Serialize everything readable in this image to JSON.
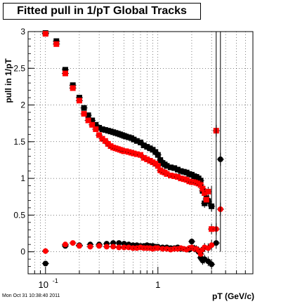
{
  "chart_data": {
    "type": "scatter",
    "title": "Fitted pull in 1/pT  Global Tracks",
    "xlabel": "pT (GeV/c)",
    "ylabel": "pull in 1/pT",
    "x_scale": "log",
    "xlim": [
      0.07,
      7.0
    ],
    "ylim": [
      -0.3,
      3.0
    ],
    "x_ticks": [
      0.1,
      1
    ],
    "x_tick_labels": [
      "10^-1",
      "1"
    ],
    "y_ticks": [
      0,
      0.5,
      1,
      1.5,
      2,
      2.5,
      3
    ],
    "y_tick_labels": [
      "0",
      "0.5",
      "1",
      "1.5",
      "2",
      "2.5",
      "3"
    ],
    "grid": true,
    "series": [
      {
        "marker": "square",
        "color": "#000000",
        "x": [
          0.1,
          0.125,
          0.15,
          0.175,
          0.2,
          0.22,
          0.24,
          0.26,
          0.28,
          0.3,
          0.32,
          0.34,
          0.36,
          0.38,
          0.4,
          0.42,
          0.44,
          0.46,
          0.48,
          0.5,
          0.52,
          0.55,
          0.58,
          0.61,
          0.65,
          0.7,
          0.75,
          0.8,
          0.85,
          0.9,
          0.95,
          1.0,
          1.05,
          1.1,
          1.15,
          1.2,
          1.3,
          1.4,
          1.5,
          1.6,
          1.7,
          1.8,
          1.9,
          2.0,
          2.1,
          2.2,
          2.3,
          2.4,
          2.5,
          2.6,
          2.7,
          2.8,
          3.0
        ],
        "y": [
          2.98,
          2.87,
          2.48,
          2.27,
          2.1,
          1.96,
          1.86,
          1.79,
          1.73,
          1.69,
          1.67,
          1.66,
          1.65,
          1.64,
          1.63,
          1.62,
          1.61,
          1.6,
          1.59,
          1.58,
          1.57,
          1.56,
          1.55,
          1.53,
          1.51,
          1.49,
          1.45,
          1.43,
          1.41,
          1.39,
          1.36,
          1.32,
          1.25,
          1.21,
          1.19,
          1.17,
          1.15,
          1.14,
          1.12,
          1.1,
          1.09,
          1.08,
          1.06,
          1.05,
          1.03,
          1.02,
          1.0,
          0.97,
          0.83,
          0.66,
          0.73,
          0.69,
          0.62
        ]
      },
      {
        "marker": "square",
        "color": "#ff0000",
        "x": [
          0.1,
          0.125,
          0.15,
          0.175,
          0.2,
          0.22,
          0.24,
          0.26,
          0.28,
          0.3,
          0.32,
          0.34,
          0.36,
          0.38,
          0.4,
          0.42,
          0.44,
          0.46,
          0.48,
          0.5,
          0.52,
          0.55,
          0.58,
          0.61,
          0.65,
          0.7,
          0.75,
          0.8,
          0.85,
          0.9,
          0.95,
          1.0,
          1.05,
          1.1,
          1.15,
          1.2,
          1.3,
          1.4,
          1.5,
          1.6,
          1.7,
          1.8,
          1.9,
          2.0,
          2.1,
          2.2,
          2.3,
          2.4,
          2.5,
          2.6,
          2.7,
          2.8,
          3.0,
          3.3
        ],
        "y": [
          2.97,
          2.83,
          2.43,
          2.23,
          2.06,
          1.88,
          1.79,
          1.73,
          1.67,
          1.59,
          1.54,
          1.51,
          1.47,
          1.44,
          1.42,
          1.41,
          1.4,
          1.39,
          1.38,
          1.37,
          1.37,
          1.36,
          1.35,
          1.34,
          1.33,
          1.32,
          1.28,
          1.26,
          1.24,
          1.22,
          1.2,
          1.17,
          1.11,
          1.09,
          1.08,
          1.06,
          1.04,
          1.03,
          1.02,
          1.0,
          0.99,
          0.98,
          0.96,
          0.95,
          0.95,
          0.94,
          0.93,
          0.91,
          0.86,
          0.8,
          0.71,
          0.82,
          0.31,
          1.65
        ]
      },
      {
        "marker": "circle",
        "color": "#000000",
        "x": [
          0.1,
          0.15,
          0.2,
          0.25,
          0.3,
          0.35,
          0.4,
          0.45,
          0.5,
          0.55,
          0.6,
          0.65,
          0.7,
          0.75,
          0.8,
          0.85,
          0.9,
          0.95,
          1.0,
          1.1,
          1.2,
          1.3,
          1.4,
          1.5,
          1.6,
          1.7,
          1.8,
          1.9,
          2.0,
          2.1,
          2.2,
          2.3,
          2.4,
          2.5,
          2.6,
          2.8,
          3.0,
          3.3,
          3.6
        ],
        "y": [
          -0.16,
          0.08,
          0.09,
          0.1,
          0.1,
          0.11,
          0.12,
          0.12,
          0.11,
          0.1,
          0.09,
          0.09,
          0.08,
          0.08,
          0.09,
          0.08,
          0.08,
          0.07,
          0.07,
          0.06,
          0.06,
          0.05,
          0.05,
          0.06,
          0.04,
          0.04,
          0.03,
          0.03,
          0.14,
          0.05,
          0.03,
          0.0,
          -0.08,
          -0.12,
          -0.1,
          -0.13,
          -0.17,
          0.12,
          1.26
        ]
      },
      {
        "marker": "circle",
        "color": "#ff0000",
        "x": [
          0.1,
          0.15,
          0.175,
          0.2,
          0.25,
          0.3,
          0.35,
          0.4,
          0.45,
          0.5,
          0.55,
          0.6,
          0.65,
          0.7,
          0.75,
          0.8,
          0.85,
          0.9,
          0.95,
          1.0,
          1.1,
          1.2,
          1.3,
          1.4,
          1.5,
          1.6,
          1.7,
          1.8,
          1.9,
          2.0,
          2.1,
          2.2,
          2.3,
          2.4,
          2.5,
          2.6,
          2.8,
          3.0,
          3.3,
          3.6
        ],
        "y": [
          0.01,
          0.1,
          0.12,
          0.08,
          0.07,
          0.08,
          0.07,
          0.07,
          0.06,
          0.06,
          0.06,
          0.05,
          0.05,
          0.06,
          0.05,
          0.05,
          0.05,
          0.04,
          0.05,
          0.05,
          0.04,
          0.04,
          0.03,
          0.04,
          0.04,
          0.05,
          0.04,
          0.03,
          0.05,
          0.06,
          0.04,
          0.04,
          0.02,
          -0.03,
          0.03,
          0.06,
          0.05,
          0.09,
          0.31,
          0.58
        ]
      }
    ]
  },
  "footer": {
    "timestamp": "Mon Oct 31 10:38:40 2011"
  }
}
